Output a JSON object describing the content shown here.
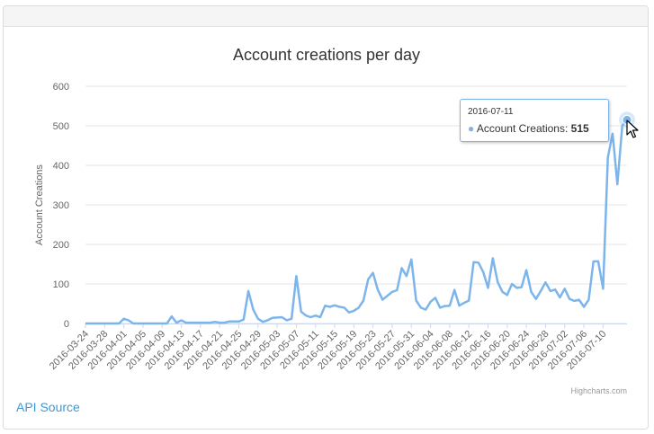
{
  "api_source": "API Source",
  "tooltip": {
    "date": "2016-07-11",
    "series": "Account Creations",
    "value": "515"
  },
  "colors": {
    "line": "#7cb5ec",
    "grid": "#e6e6e6",
    "text": "#666666",
    "title": "#333333"
  },
  "chart_data": {
    "type": "line",
    "title": "Account creations per day",
    "ylabel": "Account Creations",
    "xlabel": "",
    "ylim": [
      0,
      600
    ],
    "yticks": [
      0,
      100,
      200,
      300,
      400,
      500,
      600
    ],
    "grid": true,
    "credits": "Highcharts.com",
    "xtick_labels": [
      "2016-03-24",
      "2016-03-28",
      "2016-04-01",
      "2016-04-05",
      "2016-04-09",
      "2016-04-13",
      "2016-04-17",
      "2016-04-21",
      "2016-04-25",
      "2016-04-29",
      "2016-05-03",
      "2016-05-07",
      "2016-05-11",
      "2016-05-15",
      "2016-05-19",
      "2016-05-23",
      "2016-05-27",
      "2016-05-31",
      "2016-06-04",
      "2016-06-08",
      "2016-06-12",
      "2016-06-16",
      "2016-06-20",
      "2016-06-24",
      "2016-06-28",
      "2016-07-02",
      "2016-07-06",
      "2016-07-10"
    ],
    "x_start": "2016-03-24",
    "x_end": "2016-07-11",
    "series": [
      {
        "values": [
          0,
          0,
          0,
          0,
          0,
          0,
          0,
          0,
          12,
          8,
          0,
          0,
          0,
          0,
          0,
          0,
          0,
          0,
          18,
          2,
          8,
          2,
          2,
          2,
          2,
          2,
          2,
          4,
          2,
          2,
          5,
          5,
          5,
          10,
          82,
          35,
          12,
          4,
          8,
          14,
          15,
          16,
          8,
          12,
          120,
          30,
          20,
          16,
          20,
          16,
          45,
          42,
          46,
          42,
          40,
          28,
          32,
          40,
          58,
          112,
          128,
          85,
          60,
          70,
          80,
          84,
          140,
          120,
          162,
          58,
          40,
          35,
          55,
          65,
          40,
          44,
          45,
          85,
          45,
          52,
          58,
          155,
          154,
          130,
          90,
          165,
          105,
          80,
          72,
          100,
          90,
          92,
          135,
          80,
          62,
          82,
          104,
          82,
          86,
          66,
          88,
          62,
          57,
          60,
          42,
          60,
          157,
          157,
          88,
          420,
          480,
          352,
          500,
          515
        ]
      }
    ]
  }
}
